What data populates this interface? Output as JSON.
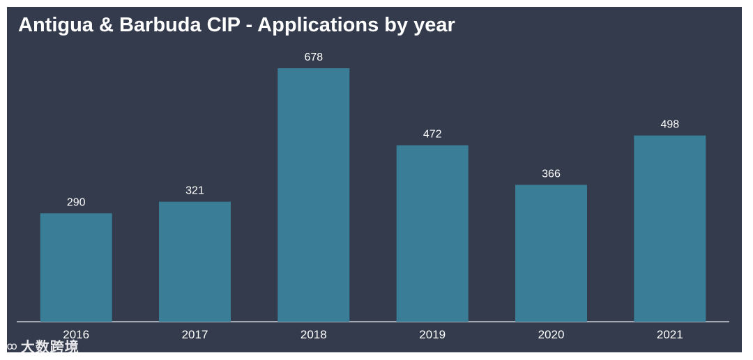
{
  "chart_data": {
    "type": "bar",
    "title": "Antigua & Barbuda CIP - Applications by year",
    "categories": [
      "2016",
      "2017",
      "2018",
      "2019",
      "2020",
      "2021"
    ],
    "values": [
      290,
      321,
      678,
      472,
      366,
      498
    ],
    "ylim": [
      0,
      700
    ],
    "grid": false,
    "legend": "none",
    "data_labels": true
  },
  "colors": {
    "background": "#333b4c",
    "bar": "#3a7d97",
    "text": "#ffffff",
    "axis": "#c9ced6"
  },
  "watermark": {
    "logo": "ℂꝏ",
    "text": "大数跨境"
  }
}
